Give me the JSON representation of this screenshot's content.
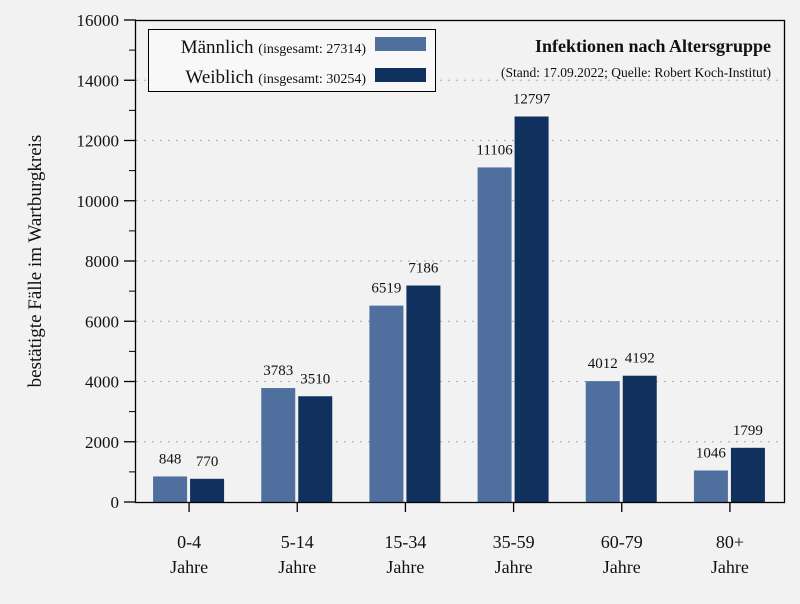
{
  "chart_data": {
    "type": "bar",
    "title": "Infektionen nach Altersgruppe",
    "subtitle": "(Stand: 17.09.2022; Quelle: Robert Koch-Institut)",
    "ylabel": "bestätigte Fälle im Wartburgkreis",
    "xlabel": "",
    "ylim": [
      0,
      16000
    ],
    "yticks": [
      0,
      2000,
      4000,
      6000,
      8000,
      10000,
      12000,
      14000,
      16000
    ],
    "grid": true,
    "legend_position": "top-left",
    "categories": [
      [
        "0-4",
        "Jahre"
      ],
      [
        "5-14",
        "Jahre"
      ],
      [
        "15-34",
        "Jahre"
      ],
      [
        "35-59",
        "Jahre"
      ],
      [
        "60-79",
        "Jahre"
      ],
      [
        "80+",
        "Jahre"
      ]
    ],
    "series": [
      {
        "name": "Männlich",
        "legend_note": "(insgesamt: 27314)",
        "color": "#4f6f9f",
        "values": [
          848,
          3783,
          6519,
          11106,
          4012,
          1046
        ]
      },
      {
        "name": "Weiblich",
        "legend_note": "(insgesamt: 30254)",
        "color": "#10305e",
        "values": [
          770,
          3510,
          7186,
          12797,
          4192,
          1799
        ]
      }
    ]
  }
}
